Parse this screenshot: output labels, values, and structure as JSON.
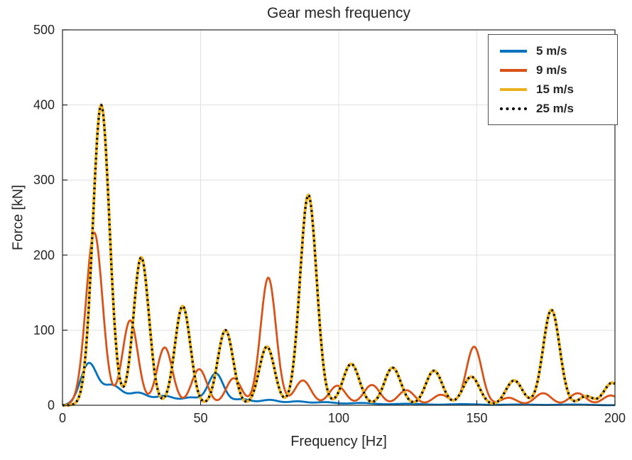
{
  "chart_data": {
    "type": "line",
    "title": "Gear mesh frequency",
    "xlabel": "Frequency [Hz]",
    "ylabel": "Force [kN]",
    "xlim": [
      0,
      200
    ],
    "ylim": [
      0,
      500
    ],
    "xticks": [
      0,
      50,
      100,
      150,
      200
    ],
    "yticks": [
      0,
      100,
      200,
      300,
      400,
      500
    ],
    "grid": true,
    "legend_position": "top-right",
    "peaks_format": "[center_frequency_hz, peak_force_kN, peak_width_sigma_hz]",
    "series": [
      {
        "name": "5 m/s",
        "color": "#0072BD",
        "style": "solid",
        "line_width": 2.8,
        "peaks": [
          [
            9.5,
            55,
            3.0
          ],
          [
            18,
            26,
            3.5
          ],
          [
            27.5,
            16,
            3.5
          ],
          [
            37,
            12,
            3.5
          ],
          [
            46.5,
            10,
            3.5
          ],
          [
            55.5,
            42,
            2.8
          ],
          [
            65,
            8,
            3.5
          ],
          [
            75,
            7,
            3.5
          ],
          [
            85,
            5,
            3.5
          ],
          [
            95,
            4,
            4.0
          ],
          [
            108,
            3,
            5.0
          ],
          [
            125,
            2,
            6.0
          ],
          [
            145,
            1.5,
            6.0
          ],
          [
            165,
            1,
            6.0
          ],
          [
            185,
            1,
            6.0
          ]
        ]
      },
      {
        "name": "9 m/s",
        "color": "#D95319",
        "style": "solid",
        "line_width": 2.8,
        "peaks": [
          [
            11.5,
            230,
            3.0
          ],
          [
            24.5,
            113,
            2.8
          ],
          [
            37,
            77,
            2.8
          ],
          [
            49.5,
            48,
            2.8
          ],
          [
            62,
            36,
            2.8
          ],
          [
            74.5,
            170,
            2.8
          ],
          [
            87,
            33,
            3.0
          ],
          [
            99.5,
            26,
            3.0
          ],
          [
            112,
            27,
            3.0
          ],
          [
            124.5,
            20,
            3.0
          ],
          [
            137,
            14,
            3.0
          ],
          [
            149,
            78,
            2.8
          ],
          [
            161.5,
            10,
            3.0
          ],
          [
            174,
            16,
            3.0
          ],
          [
            186.5,
            16,
            3.0
          ],
          [
            198.5,
            13,
            3.0
          ]
        ]
      },
      {
        "name": "15 m/s",
        "color": "#EDB120",
        "style": "solid",
        "line_width": 4,
        "peaks": [
          [
            14,
            400,
            3.0
          ],
          [
            28.5,
            197,
            2.8
          ],
          [
            43.5,
            132,
            2.8
          ],
          [
            59,
            100,
            2.8
          ],
          [
            74,
            78,
            2.8
          ],
          [
            89,
            280,
            3.0
          ],
          [
            104.5,
            55,
            3.0
          ],
          [
            119.5,
            50,
            3.0
          ],
          [
            134.5,
            46,
            3.0
          ],
          [
            148,
            38,
            3.0
          ],
          [
            163.5,
            33,
            3.0
          ],
          [
            177,
            127,
            3.0
          ],
          [
            189.5,
            12,
            2.5
          ],
          [
            199,
            30,
            3.0
          ]
        ]
      },
      {
        "name": "25 m/s",
        "color": "#000000",
        "style": "dotted",
        "line_width": 3.2,
        "peaks": [
          [
            14,
            400,
            3.0
          ],
          [
            28.5,
            197,
            2.8
          ],
          [
            43.5,
            132,
            2.8
          ],
          [
            59,
            100,
            2.8
          ],
          [
            74,
            78,
            2.8
          ],
          [
            89,
            280,
            3.0
          ],
          [
            104.5,
            55,
            3.0
          ],
          [
            119.5,
            50,
            3.0
          ],
          [
            134.5,
            46,
            3.0
          ],
          [
            148,
            38,
            3.0
          ],
          [
            163.5,
            33,
            3.0
          ],
          [
            177,
            127,
            3.0
          ],
          [
            189.5,
            12,
            2.5
          ],
          [
            199,
            30,
            3.0
          ]
        ]
      }
    ]
  }
}
